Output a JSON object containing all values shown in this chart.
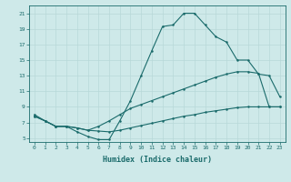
{
  "xlabel": "Humidex (Indice chaleur)",
  "bg_color": "#cee9e9",
  "line_color": "#1a6b6b",
  "grid_color": "#b8d8d8",
  "xlim": [
    -0.5,
    23.5
  ],
  "ylim": [
    4.5,
    22
  ],
  "xticks": [
    0,
    1,
    2,
    3,
    4,
    5,
    6,
    7,
    8,
    9,
    10,
    11,
    12,
    13,
    14,
    15,
    16,
    17,
    18,
    19,
    20,
    21,
    22,
    23
  ],
  "yticks": [
    5,
    7,
    9,
    11,
    13,
    15,
    17,
    19,
    21
  ],
  "line1_x": [
    0,
    1,
    2,
    3,
    4,
    5,
    6,
    7,
    8,
    9,
    10,
    11,
    12,
    13,
    14,
    15,
    16,
    17,
    18,
    19,
    20,
    21,
    22,
    23
  ],
  "line1_y": [
    8.0,
    7.2,
    6.5,
    6.5,
    5.8,
    5.2,
    4.8,
    4.8,
    7.2,
    9.8,
    13.0,
    16.2,
    19.3,
    19.5,
    21.0,
    21.0,
    19.5,
    18.0,
    17.3,
    15.0,
    15.0,
    13.2,
    13.0,
    10.3
  ],
  "line2_x": [
    0,
    1,
    2,
    3,
    4,
    5,
    6,
    7,
    8,
    9,
    10,
    11,
    12,
    13,
    14,
    15,
    16,
    17,
    18,
    19,
    20,
    21,
    22,
    23
  ],
  "line2_y": [
    7.8,
    7.2,
    6.5,
    6.5,
    6.3,
    6.0,
    6.5,
    7.2,
    8.0,
    8.8,
    9.3,
    9.8,
    10.3,
    10.8,
    11.3,
    11.8,
    12.3,
    12.8,
    13.2,
    13.5,
    13.5,
    13.3,
    9.0,
    9.0
  ],
  "line3_x": [
    0,
    1,
    2,
    3,
    4,
    5,
    6,
    7,
    8,
    9,
    10,
    11,
    12,
    13,
    14,
    15,
    16,
    17,
    18,
    19,
    20,
    21,
    22,
    23
  ],
  "line3_y": [
    7.8,
    7.2,
    6.5,
    6.5,
    6.3,
    6.0,
    5.9,
    5.8,
    6.0,
    6.3,
    6.6,
    6.9,
    7.2,
    7.5,
    7.8,
    8.0,
    8.3,
    8.5,
    8.7,
    8.9,
    9.0,
    9.0,
    9.0,
    9.0
  ]
}
